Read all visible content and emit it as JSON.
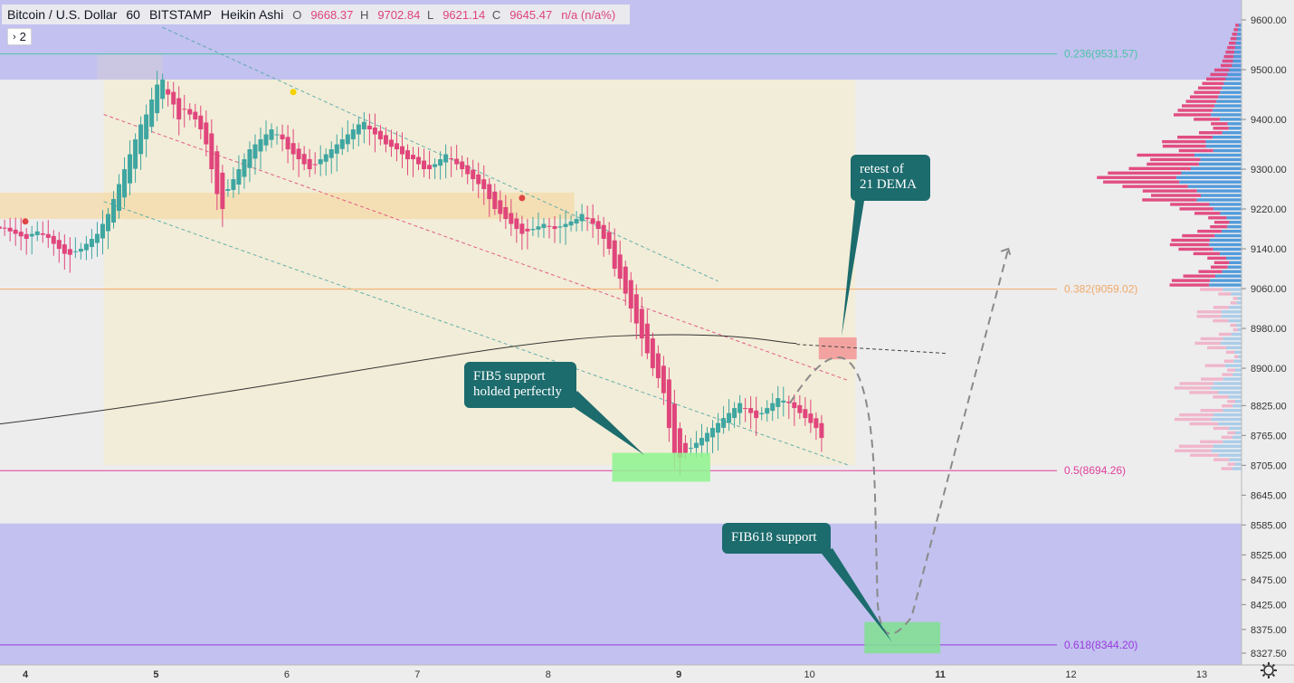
{
  "header": {
    "symbol": "Bitcoin / U.S. Dollar",
    "interval": "60",
    "exchange": "BITSTAMP",
    "chart_style": "Heikin Ashi",
    "open_label": "O",
    "open": "9668.37",
    "high_label": "H",
    "high": "9702.84",
    "low_label": "L",
    "low": "9621.14",
    "close_label": "C",
    "close": "9645.47",
    "change": "n/a (n/a%)",
    "indicators_toggle": "2"
  },
  "colors": {
    "up": "#3fa6a1",
    "down": "#e0457b",
    "background": "#ededee",
    "zone_purple": "#c2c1ef",
    "annotation_box": "#1c6b6d",
    "fib_0236": "#4ec3a8",
    "fib_0382": "#f2a968",
    "fib_05": "#e0409a",
    "fib_0618": "#9a39e0"
  },
  "chart_data": {
    "type": "candlestick",
    "style": "Heikin Ashi",
    "y_axis": {
      "range": [
        8300,
        9630
      ],
      "ticks": [
        "9600.00",
        "9500.00",
        "9400.00",
        "9300.00",
        "9220.00",
        "9140.00",
        "9060.00",
        "8980.00",
        "8900.00",
        "8825.00",
        "8765.00",
        "8705.00",
        "8645.00",
        "8585.00",
        "8525.00",
        "8475.00",
        "8425.00",
        "8375.00",
        "8327.50"
      ]
    },
    "x_axis": {
      "ticks": [
        "4",
        "5",
        "6",
        "7",
        "8",
        "9",
        "10",
        "11",
        "12",
        "13"
      ],
      "bold_ticks": [
        "4",
        "5",
        "9",
        "11"
      ],
      "range_days": [
        3.0,
        13.3
      ]
    },
    "candles_start_day": 3.8,
    "candles_per_day": 24,
    "heikin_ashi_closes": [
      9180,
      9182,
      9175,
      9170,
      9165,
      9160,
      9170,
      9175,
      9168,
      9162,
      9150,
      9140,
      9130,
      9128,
      9135,
      9140,
      9150,
      9160,
      9170,
      9190,
      9210,
      9240,
      9270,
      9300,
      9330,
      9360,
      9390,
      9410,
      9440,
      9470,
      9480,
      9450,
      9430,
      9400,
      9420,
      9410,
      9400,
      9380,
      9350,
      9300,
      9250,
      9220,
      9260,
      9280,
      9300,
      9320,
      9340,
      9350,
      9360,
      9370,
      9380,
      9370,
      9360,
      9340,
      9330,
      9320,
      9310,
      9300,
      9310,
      9320,
      9330,
      9340,
      9350,
      9360,
      9370,
      9380,
      9390,
      9395,
      9380,
      9370,
      9360,
      9350,
      9345,
      9340,
      9330,
      9320,
      9320,
      9310,
      9300,
      9300,
      9310,
      9320,
      9330,
      9320,
      9310,
      9300,
      9290,
      9280,
      9270,
      9260,
      9240,
      9220,
      9210,
      9200,
      9190,
      9180,
      9170,
      9175,
      9180,
      9185,
      9190,
      9185,
      9180,
      9185,
      9190,
      9195,
      9200,
      9210,
      9200,
      9190,
      9180,
      9160,
      9140,
      9100,
      9080,
      9050,
      9020,
      8990,
      8960,
      8930,
      8900,
      8880,
      8850,
      8780,
      8730,
      8720,
      8730,
      8740,
      8750,
      8760,
      8770,
      8780,
      8790,
      8800,
      8810,
      8820,
      8830,
      8820,
      8810,
      8800,
      8810,
      8820,
      8830,
      8840,
      8835,
      8830,
      8820,
      8810,
      8800,
      8790,
      8780,
      8760
    ],
    "dema21": {
      "start": [
        0,
        8800
      ],
      "peak": [
        8.55,
        8965
      ],
      "end": [
        9.9,
        8950
      ]
    },
    "channel": {
      "upper": [
        [
          5.05,
          9585
        ],
        [
          9.3,
          9075
        ]
      ],
      "middle": [
        [
          4.6,
          9410
        ],
        [
          10.3,
          8875
        ]
      ],
      "lower": [
        [
          4.6,
          9235
        ],
        [
          10.3,
          8705
        ]
      ],
      "box_days": [
        4.6,
        10.35
      ]
    },
    "zones": {
      "purple_top": [
        9480,
        9700
      ],
      "purple_bottom": [
        8240,
        8588
      ],
      "orange_band": [
        9200,
        9253
      ],
      "yellow_box": [
        8705,
        9480
      ]
    },
    "fib_levels": [
      {
        "label": "0.236(9531.57)",
        "value": 9531.57
      },
      {
        "label": "0.382(9059.02)",
        "value": 9059.02
      },
      {
        "label": "0.5(8694.26)",
        "value": 8694.26
      },
      {
        "label": "0.618(8344.20)",
        "value": 8344.2
      }
    ],
    "annotations": [
      {
        "text": [
          "retest of",
          "21 DEMA"
        ]
      },
      {
        "text": [
          "FIB5 support",
          "holded perfectly"
        ]
      },
      {
        "text": [
          "FIB618 support"
        ]
      }
    ],
    "volume_profile": "horizontal histogram on right side, bulk 8880-9500"
  }
}
